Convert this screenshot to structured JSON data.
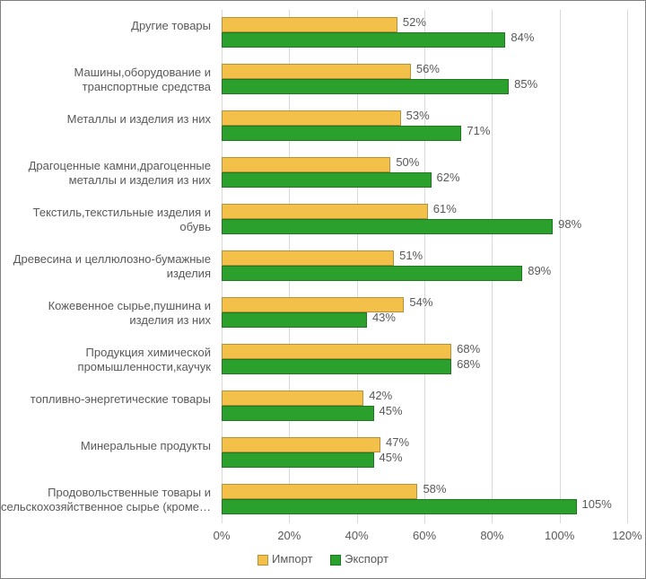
{
  "chart": {
    "type": "bar-horizontal-grouped",
    "background_color": "#ffffff",
    "border_color": "#808080",
    "grid_color": "#d9d9d9",
    "axis_line_color": "#d9d9d9",
    "label_color": "#595959",
    "label_fontsize": 13,
    "value_suffix": "%",
    "xaxis": {
      "min": 0,
      "max": 120,
      "tick_step": 20,
      "ticks": [
        0,
        20,
        40,
        60,
        80,
        100,
        120
      ],
      "tick_labels": [
        "0%",
        "20%",
        "40%",
        "60%",
        "80%",
        "100%",
        "120%"
      ]
    },
    "series": {
      "import": {
        "label": "Импорт",
        "fill": "#f3c04a",
        "border": "#b7903b"
      },
      "export": {
        "label": "Экспорт",
        "fill": "#2ca02c",
        "border": "#1f781f"
      }
    },
    "categories": [
      {
        "label": "Другие товары",
        "import": 52,
        "export": 84
      },
      {
        "label": "Машины,оборудование и транспортные средства",
        "import": 56,
        "export": 85
      },
      {
        "label": "Металлы и изделия из них",
        "import": 53,
        "export": 71
      },
      {
        "label": "Драгоценные камни,драгоценные металлы и изделия из них",
        "import": 50,
        "export": 62
      },
      {
        "label": "Текстиль,текстильные изделия и обувь",
        "import": 61,
        "export": 98
      },
      {
        "label": "Древесина и целлюлозно-бумажные изделия",
        "import": 51,
        "export": 89
      },
      {
        "label": "Кожевенное сырье,пушнина и изделия из них",
        "import": 54,
        "export": 43
      },
      {
        "label": "Продукция химической промышленности,каучук",
        "import": 68,
        "export": 68
      },
      {
        "label": "топливно-энергетические товары",
        "import": 42,
        "export": 45
      },
      {
        "label": "Минеральные продукты",
        "import": 47,
        "export": 45
      },
      {
        "label": "Продовольственные товары и сельскохозяйственное сырье (кроме…",
        "import": 58,
        "export": 105
      }
    ]
  }
}
